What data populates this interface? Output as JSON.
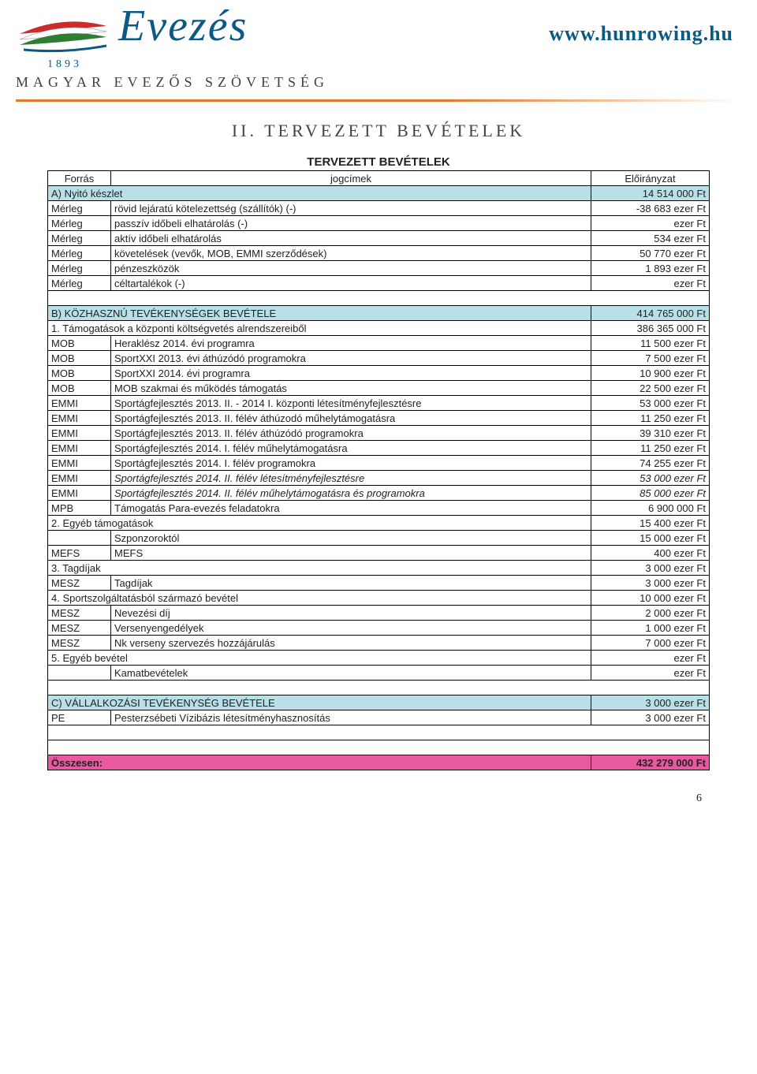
{
  "header": {
    "brand": "Evezés",
    "year": "1893",
    "org": "MAGYAR EVEZŐS SZÖVETSÉG",
    "url": "www.hunrowing.hu",
    "ribbon_colors": [
      "#cc2b2b",
      "#ffffff",
      "#2e7d32"
    ],
    "underline_color": "#e67a2a",
    "brand_color": "#0a5a84"
  },
  "chapter": "II.   TERVEZETT BEVÉTELEK",
  "table_title": "TERVEZETT BEVÉTELEK",
  "columns": [
    "Forrás",
    "jogcímek",
    "Előirányzat"
  ],
  "section_bg": "#b8e0e6",
  "total_bg": "#e85aa0",
  "sections": [
    {
      "header": {
        "label": "A) Nyitó készlet",
        "value": "14 514 000 Ft"
      },
      "rows": [
        {
          "src": "Mérleg",
          "title": "rövid lejáratú kötelezettség (szállítók) (-)",
          "value": "-38 683 ezer Ft"
        },
        {
          "src": "Mérleg",
          "title": "passzív időbeli elhatárolás (-)",
          "value": "ezer Ft"
        },
        {
          "src": "Mérleg",
          "title": "aktív időbeli elhatárolás",
          "value": "534 ezer Ft"
        },
        {
          "src": "Mérleg",
          "title": "követelések (vevők, MOB, EMMI szerződések)",
          "value": "50 770 ezer Ft"
        },
        {
          "src": "Mérleg",
          "title": "pénzeszközök",
          "value": "1 893 ezer Ft"
        },
        {
          "src": "Mérleg",
          "title": "céltartalékok (-)",
          "value": "ezer Ft"
        }
      ]
    },
    {
      "header": {
        "label": "B) KÖZHASZNÚ TEVÉKENYSÉGEK BEVÉTELE",
        "value": "414 765 000 Ft"
      },
      "rows": [
        {
          "src": "",
          "span": true,
          "title": "1. Támogatások a központi költségvetés alrendszereiből",
          "value": "386 365 000 Ft"
        },
        {
          "src": "MOB",
          "title": "Heraklész 2014. évi programra",
          "value": "11 500 ezer Ft"
        },
        {
          "src": "MOB",
          "title": "SportXXI 2013. évi áthúzódó programokra",
          "value": "7 500 ezer Ft"
        },
        {
          "src": "MOB",
          "title": "SportXXI 2014. évi programra",
          "value": "10 900 ezer Ft"
        },
        {
          "src": "MOB",
          "title": "MOB szakmai és működés támogatás",
          "value": "22 500 ezer Ft"
        },
        {
          "src": "EMMI",
          "title": "Sportágfejlesztés 2013. II. - 2014 I. központi létesítményfejlesztésre",
          "value": "53 000 ezer Ft"
        },
        {
          "src": "EMMI",
          "title": "Sportágfejlesztés 2013. II. félév áthúzodó műhelytámogatásra",
          "value": "11 250 ezer Ft"
        },
        {
          "src": "EMMI",
          "title": "Sportágfejlesztés 2013. II. félév áthúzódó programokra",
          "value": "39 310 ezer Ft"
        },
        {
          "src": "EMMI",
          "title": "Sportágfejlesztés 2014. I. félév műhelytámogatásra",
          "value": "11 250 ezer Ft"
        },
        {
          "src": "EMMI",
          "title": "Sportágfejlesztés 2014. I. félév programokra",
          "value": "74 255 ezer Ft"
        },
        {
          "src": "EMMI",
          "title": "Sportágfejlesztés 2014. II. félév létesítményfejlesztésre",
          "value": "53 000 ezer Ft",
          "italic": true
        },
        {
          "src": "EMMI",
          "title": "Sportágfejlesztés 2014. II. félév műhelytámogatásra és programokra",
          "value": "85 000 ezer Ft",
          "italic": true
        },
        {
          "src": "MPB",
          "title": "Támogatás Para-evezés feladatokra",
          "value": "6 900 000 Ft"
        },
        {
          "src": "",
          "span": true,
          "title": "2. Egyéb támogatások",
          "value": "15 400 ezer Ft"
        },
        {
          "src": "",
          "title": "Szponzoroktól",
          "value": "15 000 ezer Ft"
        },
        {
          "src": "MEFS",
          "title": "MEFS",
          "value": "400 ezer Ft"
        },
        {
          "src": "",
          "span": true,
          "title": "3. Tagdíjak",
          "value": "3 000 ezer Ft"
        },
        {
          "src": "MESZ",
          "title": "Tagdíjak",
          "value": "3 000 ezer Ft"
        },
        {
          "src": "",
          "span": true,
          "title": "4. Sportszolgáltatásból származó bevétel",
          "value": "10 000 ezer Ft"
        },
        {
          "src": "MESZ",
          "title": "Nevezési díj",
          "value": "2 000 ezer Ft"
        },
        {
          "src": "MESZ",
          "title": "Versenyengedélyek",
          "value": "1 000 ezer Ft"
        },
        {
          "src": "MESZ",
          "title": "Nk verseny szervezés hozzájárulás",
          "value": "7 000 ezer Ft"
        },
        {
          "src": "",
          "span": true,
          "title": "5. Egyéb bevétel",
          "value": "ezer Ft"
        },
        {
          "src": "",
          "title": "Kamatbevételek",
          "value": "ezer Ft"
        }
      ]
    },
    {
      "header": {
        "label": "C) VÁLLALKOZÁSI TEVÉKENYSÉG BEVÉTELE",
        "value": "3 000 ezer Ft"
      },
      "rows": [
        {
          "src": "PE",
          "title": "Pesterzsébeti Vízibázis létesítményhasznosítás",
          "value": "3 000 ezer Ft"
        }
      ]
    }
  ],
  "total": {
    "label": "Összesen:",
    "value": "432 279 000 Ft"
  },
  "page": "6"
}
